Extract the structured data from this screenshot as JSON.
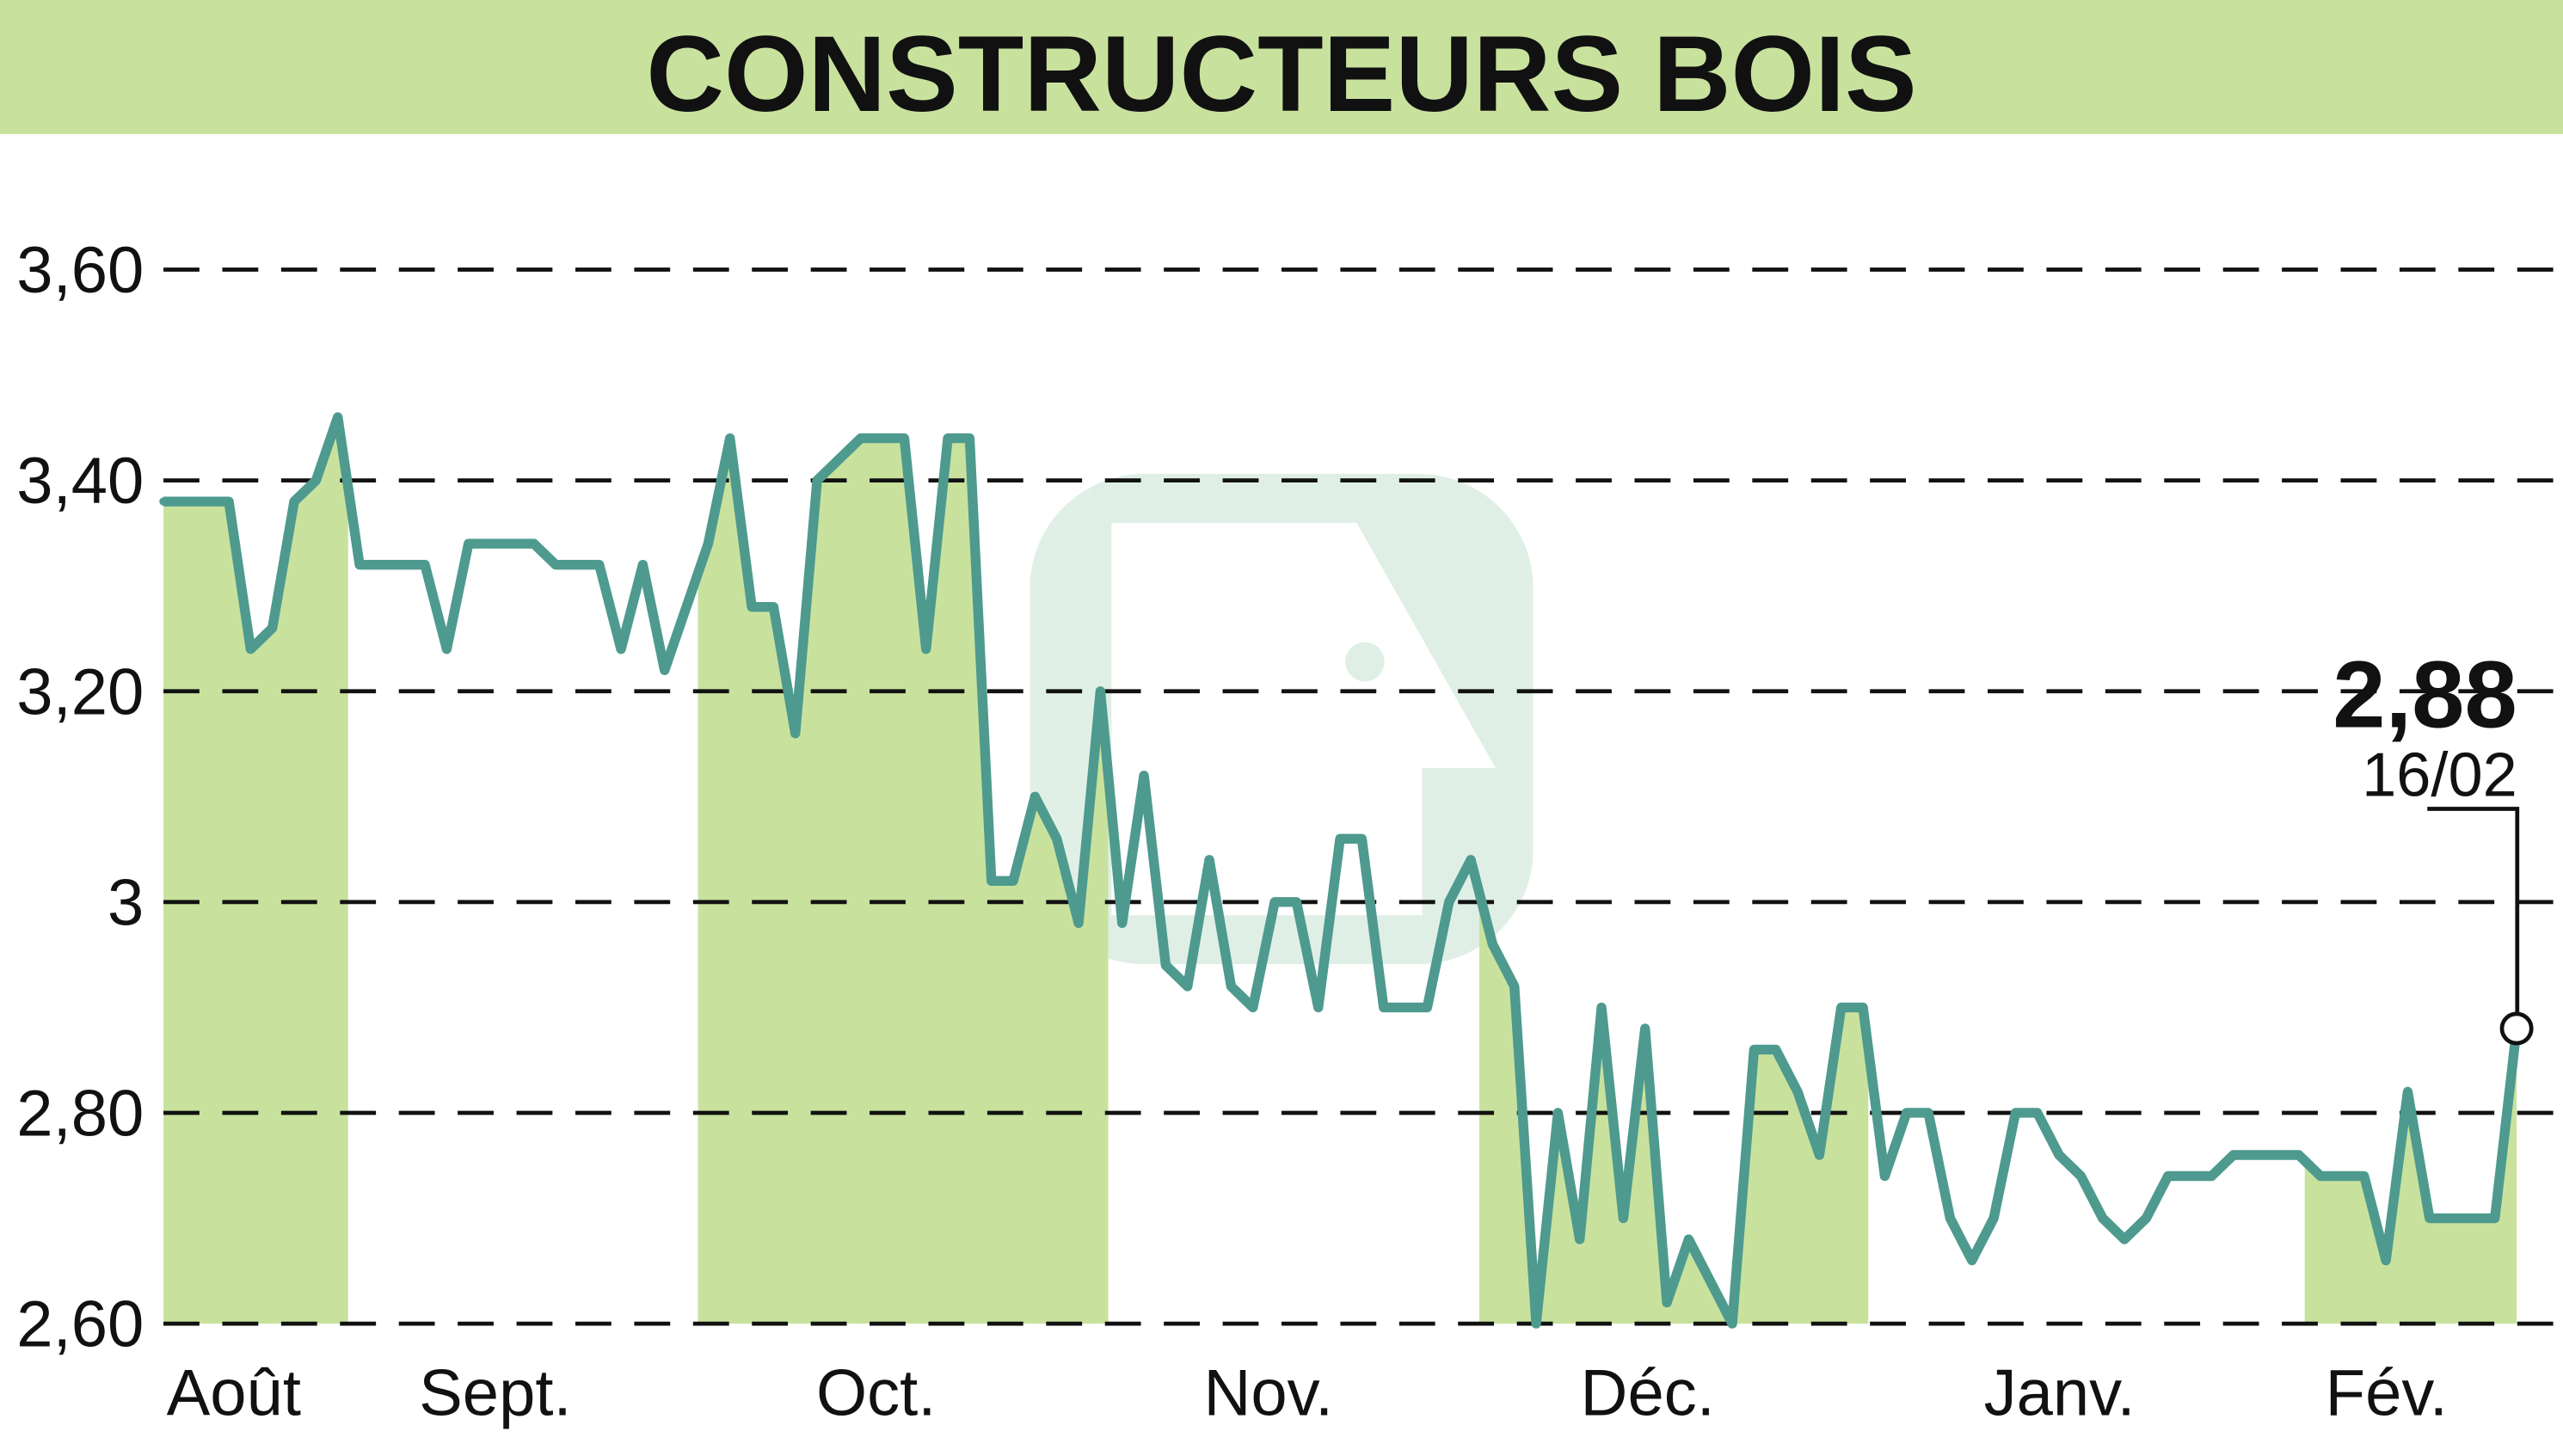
{
  "chart_data": {
    "type": "line",
    "title": "CONSTRUCTEURS BOIS",
    "ylim": [
      2.6,
      3.6
    ],
    "y_ticks": [
      "3,60",
      "3,40",
      "3,20",
      "3",
      "2,80",
      "2,60"
    ],
    "y_tick_values": [
      3.6,
      3.4,
      3.2,
      3.0,
      2.8,
      2.6
    ],
    "months": [
      "Août",
      "Sept.",
      "Oct.",
      "Nov.",
      "Déc.",
      "Janv.",
      "Fév."
    ],
    "shaded_months": [
      "Août",
      "Oct.",
      "Déc.",
      "Fév."
    ],
    "grid": "horizontal dashed",
    "last_value": "2,88",
    "last_date": "16/02",
    "colors": {
      "header": "#c8e29e",
      "line": "#4e9a8f",
      "fill": "#c8e29e"
    },
    "values": [
      3.38,
      3.38,
      3.38,
      3.38,
      3.24,
      3.26,
      3.38,
      3.4,
      3.46,
      3.32,
      3.32,
      3.32,
      3.32,
      3.24,
      3.34,
      3.34,
      3.34,
      3.34,
      3.32,
      3.32,
      3.32,
      3.24,
      3.32,
      3.22,
      3.28,
      3.34,
      3.44,
      3.28,
      3.28,
      3.16,
      3.4,
      3.42,
      3.44,
      3.44,
      3.44,
      3.24,
      3.44,
      3.44,
      3.02,
      3.02,
      3.1,
      3.06,
      2.98,
      3.2,
      2.98,
      3.12,
      2.94,
      2.92,
      3.04,
      2.92,
      2.9,
      3.0,
      3.0,
      2.9,
      3.06,
      3.06,
      2.9,
      2.9,
      2.9,
      3.0,
      3.04,
      2.96,
      2.92,
      2.6,
      2.8,
      2.68,
      2.9,
      2.7,
      2.88,
      2.62,
      2.68,
      2.64,
      2.6,
      2.86,
      2.86,
      2.82,
      2.76,
      2.9,
      2.9,
      2.74,
      2.8,
      2.8,
      2.7,
      2.66,
      2.7,
      2.8,
      2.8,
      2.76,
      2.74,
      2.7,
      2.68,
      2.7,
      2.74,
      2.74,
      2.74,
      2.76,
      2.76,
      2.76,
      2.76,
      2.74,
      2.74,
      2.74,
      2.66,
      2.82,
      2.7,
      2.7,
      2.7,
      2.7,
      2.88
    ]
  }
}
